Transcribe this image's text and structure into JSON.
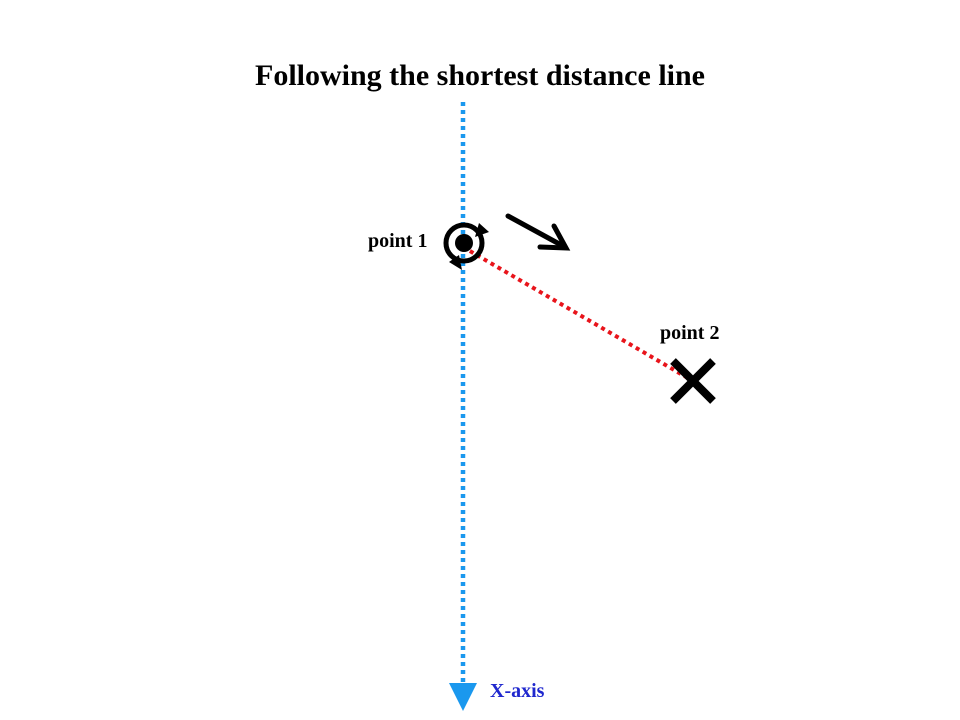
{
  "title": "Following the shortest distance line",
  "point1": {
    "label": "point 1"
  },
  "point2": {
    "label": "point 2"
  },
  "axis": {
    "label": "X-axis"
  },
  "colors": {
    "axis": "#1a98ee",
    "axis_label": "#1f27ce",
    "path": "#e8141b",
    "marks": "#000000"
  },
  "icons": {
    "point1": "target-rotation-icon",
    "point2": "x-mark-icon",
    "direction": "arrow-down-right-icon"
  }
}
